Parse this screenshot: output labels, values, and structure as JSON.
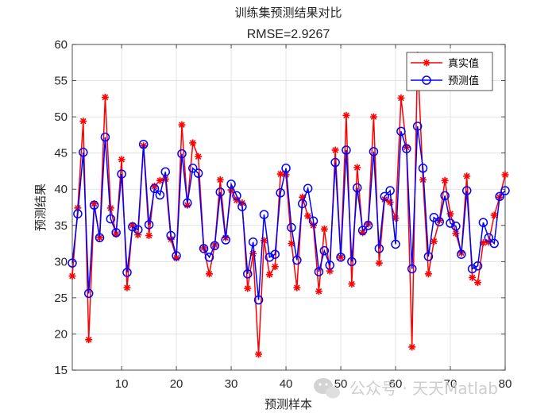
{
  "chart_data": {
    "type": "line",
    "title": "训练集预测结果对比",
    "subtitle": "RMSE=2.9267",
    "xlabel": "预测样本",
    "ylabel": "预测结果",
    "xlim": [
      1,
      80
    ],
    "ylim": [
      15,
      60
    ],
    "xticks": [
      10,
      20,
      30,
      40,
      50,
      60,
      70,
      80
    ],
    "yticks": [
      15,
      20,
      25,
      30,
      35,
      40,
      45,
      50,
      55,
      60
    ],
    "grid": true,
    "legend_position": "top-right",
    "x": [
      1,
      2,
      3,
      4,
      5,
      6,
      7,
      8,
      9,
      10,
      11,
      12,
      13,
      14,
      15,
      16,
      17,
      18,
      19,
      20,
      21,
      22,
      23,
      24,
      25,
      26,
      27,
      28,
      29,
      30,
      31,
      32,
      33,
      34,
      35,
      36,
      37,
      38,
      39,
      40,
      41,
      42,
      43,
      44,
      45,
      46,
      47,
      48,
      49,
      50,
      51,
      52,
      53,
      54,
      55,
      56,
      57,
      58,
      59,
      60,
      61,
      62,
      63,
      64,
      65,
      66,
      67,
      68,
      69,
      70,
      71,
      72,
      73,
      74,
      75,
      76,
      77,
      78,
      79,
      80
    ],
    "series": [
      {
        "name": "真实值",
        "color": "#ff0000",
        "marker": "asterisk",
        "values": [
          28.0,
          37.4,
          49.4,
          19.2,
          38.0,
          33.3,
          52.7,
          37.4,
          33.8,
          44.1,
          26.4,
          35.0,
          33.7,
          46.0,
          33.6,
          40.4,
          41.2,
          41.4,
          33.1,
          30.5,
          48.9,
          37.8,
          46.4,
          44.5,
          31.9,
          28.3,
          32.3,
          41.3,
          33.3,
          39.9,
          38.5,
          38.1,
          26.3,
          31.1,
          17.2,
          32.9,
          28.2,
          29.3,
          42.1,
          42.0,
          32.5,
          26.4,
          38.9,
          36.3,
          35.0,
          25.9,
          34.5,
          28.7,
          45.4,
          30.6,
          50.2,
          26.9,
          43.0,
          34.0,
          35.2,
          50.0,
          29.8,
          38.6,
          38.2,
          36.0,
          52.6,
          45.8,
          18.2,
          58.5,
          41.3,
          28.3,
          32.8,
          35.7,
          41.2,
          36.6,
          33.9,
          31.2,
          41.8,
          27.8,
          27.1,
          32.6,
          32.7,
          36.4,
          38.9,
          42.0
        ]
      },
      {
        "name": "预测值",
        "color": "#0000ff",
        "marker": "circle",
        "values": [
          29.8,
          36.6,
          45.1,
          25.6,
          37.8,
          33.3,
          47.2,
          35.9,
          34.0,
          42.1,
          28.5,
          34.8,
          34.4,
          46.2,
          35.1,
          40.1,
          39.2,
          42.4,
          33.6,
          30.8,
          44.9,
          38.1,
          42.9,
          42.2,
          31.8,
          30.6,
          32.2,
          39.6,
          33.0,
          40.7,
          39.1,
          37.6,
          28.3,
          32.7,
          24.7,
          36.5,
          30.6,
          31.0,
          39.5,
          42.9,
          34.7,
          30.2,
          38.0,
          40.1,
          35.6,
          28.6,
          31.5,
          29.5,
          43.7,
          30.6,
          45.4,
          30.0,
          40.2,
          34.3,
          35.0,
          45.2,
          31.8,
          39.0,
          39.8,
          32.4,
          48.0,
          45.6,
          29.0,
          48.7,
          42.9,
          30.7,
          36.1,
          35.5,
          39.1,
          35.3,
          34.9,
          31.0,
          39.8,
          29.0,
          29.4,
          35.4,
          33.3,
          32.5,
          39.0,
          39.8
        ]
      }
    ]
  },
  "watermark": {
    "icon": "wechat-icon",
    "text": "公众号 · 天天Matlab"
  }
}
